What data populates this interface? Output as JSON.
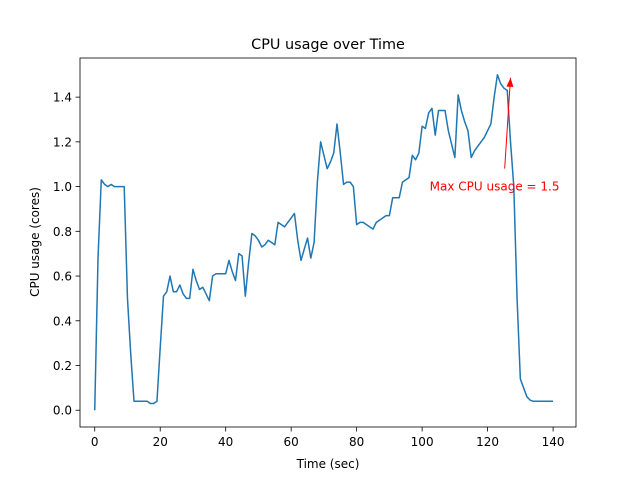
{
  "chart_data": {
    "type": "line",
    "title": "CPU usage over Time",
    "xlabel": "Time (sec)",
    "ylabel": "CPU usage (cores)",
    "xlim": [
      -4.5,
      147
    ],
    "ylim": [
      -0.075,
      1.575
    ],
    "xticks": [
      0,
      20,
      40,
      60,
      80,
      100,
      120,
      140
    ],
    "yticks": [
      0.0,
      0.2,
      0.4,
      0.6,
      0.8,
      1.0,
      1.2,
      1.4
    ],
    "ytick_labels": [
      "0.0",
      "0.2",
      "0.4",
      "0.6",
      "0.8",
      "1.0",
      "1.2",
      "1.4"
    ],
    "grid": false,
    "series": [
      {
        "name": "CPU usage",
        "color": "#1f77b4",
        "x": [
          0,
          1,
          2,
          3,
          4,
          5,
          6,
          7,
          8,
          9,
          10,
          11,
          12,
          13,
          14,
          15,
          16,
          17,
          18,
          19,
          20,
          21,
          22,
          23,
          24,
          25,
          26,
          27,
          28,
          29,
          30,
          31,
          32,
          33,
          34,
          35,
          36,
          37,
          38,
          39,
          40,
          41,
          42,
          43,
          44,
          45,
          46,
          47,
          48,
          49,
          50,
          51,
          52,
          53,
          54,
          55,
          56,
          57,
          58,
          59,
          60,
          61,
          62,
          63,
          64,
          65,
          66,
          67,
          68,
          69,
          70,
          71,
          72,
          73,
          74,
          75,
          76,
          77,
          78,
          79,
          80,
          81,
          82,
          83,
          84,
          85,
          86,
          87,
          88,
          89,
          90,
          91,
          92,
          93,
          94,
          95,
          96,
          97,
          98,
          99,
          100,
          101,
          102,
          103,
          104,
          105,
          106,
          107,
          108,
          109,
          110,
          111,
          112,
          113,
          114,
          115,
          116,
          117,
          118,
          119,
          120,
          121,
          122,
          123,
          124,
          125,
          126,
          127,
          128,
          129,
          130,
          131,
          132,
          133,
          134,
          135,
          136,
          137,
          138,
          139,
          140
        ],
        "y": [
          0.0,
          0.68,
          1.03,
          1.01,
          1.0,
          1.01,
          1.0,
          1.0,
          1.0,
          1.0,
          0.5,
          0.25,
          0.04,
          0.04,
          0.04,
          0.04,
          0.04,
          0.03,
          0.03,
          0.04,
          0.28,
          0.51,
          0.53,
          0.6,
          0.53,
          0.53,
          0.56,
          0.52,
          0.5,
          0.5,
          0.63,
          0.58,
          0.54,
          0.55,
          0.52,
          0.49,
          0.6,
          0.61,
          0.61,
          0.61,
          0.61,
          0.67,
          0.62,
          0.58,
          0.7,
          0.69,
          0.51,
          0.66,
          0.79,
          0.78,
          0.76,
          0.73,
          0.74,
          0.76,
          0.75,
          0.74,
          0.84,
          0.83,
          0.82,
          0.84,
          0.86,
          0.88,
          0.76,
          0.67,
          0.72,
          0.77,
          0.68,
          0.75,
          1.02,
          1.2,
          1.14,
          1.08,
          1.11,
          1.15,
          1.28,
          1.15,
          1.01,
          1.02,
          1.02,
          1.0,
          0.83,
          0.84,
          0.84,
          0.83,
          0.82,
          0.81,
          0.84,
          0.85,
          0.86,
          0.87,
          0.87,
          0.95,
          0.95,
          0.95,
          1.02,
          1.03,
          1.04,
          1.14,
          1.12,
          1.15,
          1.27,
          1.26,
          1.33,
          1.35,
          1.23,
          1.34,
          1.34,
          1.34,
          1.25,
          1.19,
          1.13,
          1.41,
          1.34,
          1.29,
          1.25,
          1.13,
          1.16,
          1.18,
          1.2,
          1.22,
          1.25,
          1.28,
          1.4,
          1.5,
          1.46,
          1.44,
          1.43,
          1.2,
          1.0,
          0.5,
          0.14,
          0.1,
          0.06,
          0.045,
          0.04,
          0.04,
          0.04,
          0.04,
          0.04,
          0.04,
          0.04
        ]
      }
    ],
    "annotations": [
      {
        "text": "Max CPU usage = 1.5",
        "color": "#ff0000",
        "xy": [
          127,
          1.5
        ],
        "xytext": [
          102,
          1.0
        ]
      }
    ]
  }
}
